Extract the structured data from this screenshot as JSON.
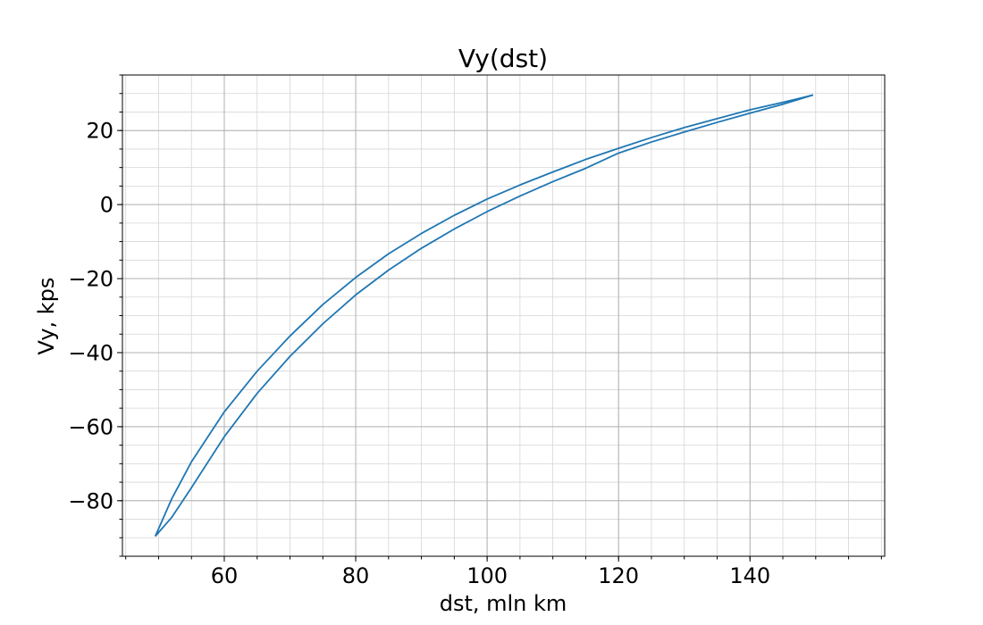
{
  "chart_data": {
    "type": "line",
    "title": "Vy(dst)",
    "xlabel": "dst, mln km",
    "ylabel": "Vy, kps",
    "xlim": [
      44.5,
      160.5
    ],
    "ylim": [
      -95,
      35
    ],
    "grid": true,
    "minor_grid": true,
    "x_ticks": [
      60,
      80,
      100,
      120,
      140
    ],
    "x_tick_labels": [
      "60",
      "80",
      "100",
      "120",
      "140"
    ],
    "y_ticks": [
      -80,
      -60,
      -40,
      -20,
      0,
      20
    ],
    "y_tick_labels": [
      "−80",
      "−60",
      "−40",
      "−20",
      "0",
      "20"
    ],
    "x_minor_step": 5,
    "y_minor_step": 5,
    "color": "#1f77b4",
    "series": [
      {
        "x": [
          49.5,
          52,
          55,
          60,
          65,
          70,
          75,
          80,
          85,
          90,
          95,
          100,
          105,
          110,
          115,
          120,
          125,
          130,
          135,
          140,
          145,
          149.6
        ],
        "y": [
          -89.6,
          -79.5,
          -69.5,
          -56.0,
          -45.0,
          -35.5,
          -27.0,
          -19.7,
          -13.3,
          -7.8,
          -2.9,
          1.5,
          5.3,
          8.8,
          12.2,
          15.2,
          18.1,
          20.8,
          23.2,
          25.6,
          27.6,
          29.6
        ]
      },
      {
        "x": [
          49.5,
          52,
          55,
          60,
          65,
          70,
          75,
          80,
          85,
          90,
          95,
          100,
          105,
          110,
          115,
          120,
          125,
          130,
          135,
          140,
          145,
          149.6
        ],
        "y": [
          -89.6,
          -84.5,
          -76.5,
          -62.7,
          -51.0,
          -41.0,
          -32.2,
          -24.4,
          -17.7,
          -11.8,
          -6.6,
          -1.9,
          2.3,
          6.2,
          9.8,
          13.9,
          16.9,
          19.6,
          22.2,
          24.7,
          27.1,
          29.6
        ]
      }
    ]
  }
}
